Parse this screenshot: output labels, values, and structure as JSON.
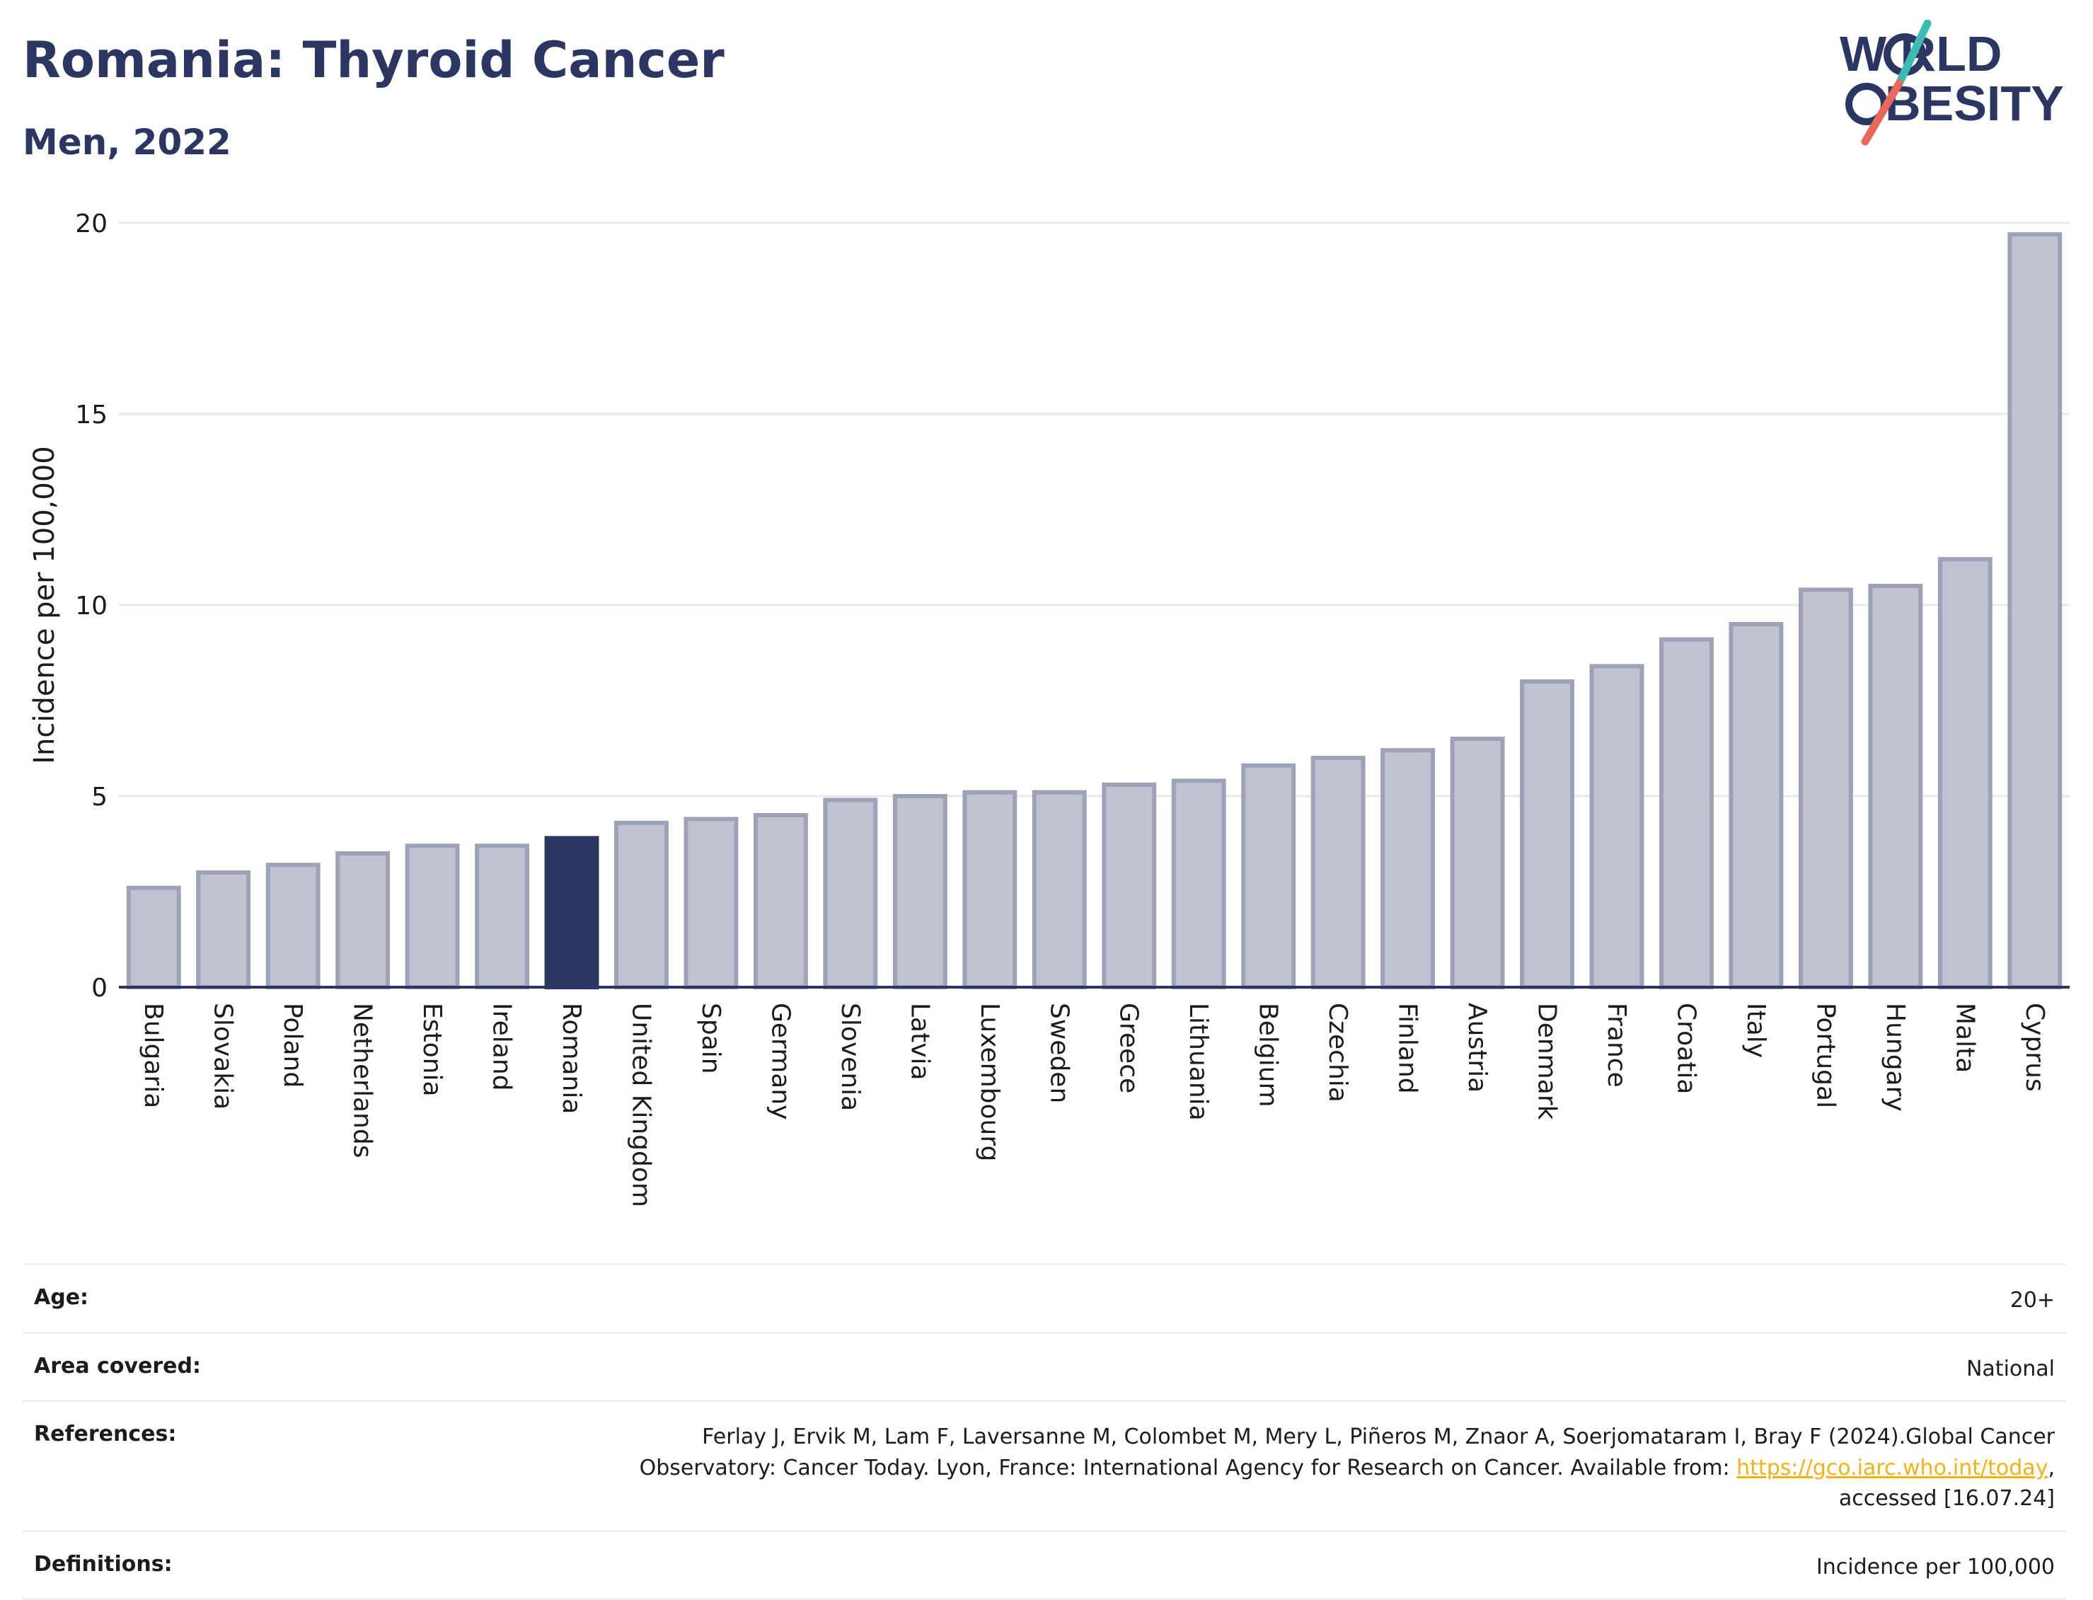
{
  "header": {
    "title": "Romania: Thyroid Cancer",
    "subtitle": "Men, 2022"
  },
  "logo": {
    "line1": "W RLD",
    "line2": "BESITY",
    "colors": {
      "text": "#2b3663",
      "slash_top": "#3dbcb6",
      "slash_bottom": "#e8685a"
    }
  },
  "colors": {
    "bar_fill": "#bfc2d0",
    "bar_stroke": "#9da2b7",
    "highlight": "#2b3663",
    "grid": "#e6e8ee",
    "axis": "#2b3663"
  },
  "chart_data": {
    "type": "bar",
    "ylabel": "Incidence per 100,000",
    "ylim": [
      0,
      20
    ],
    "yticks": [
      0,
      5,
      10,
      15,
      20
    ],
    "grid": true,
    "highlight": "Romania",
    "categories": [
      "Bulgaria",
      "Slovakia",
      "Poland",
      "Netherlands",
      "Estonia",
      "Ireland",
      "Romania",
      "United Kingdom",
      "Spain",
      "Germany",
      "Slovenia",
      "Latvia",
      "Luxembourg",
      "Sweden",
      "Greece",
      "Lithuania",
      "Belgium",
      "Czechia",
      "Finland",
      "Austria",
      "Denmark",
      "France",
      "Croatia",
      "Italy",
      "Portugal",
      "Hungary",
      "Malta",
      "Cyprus"
    ],
    "values": [
      2.6,
      3.0,
      3.2,
      3.5,
      3.7,
      3.7,
      3.9,
      4.3,
      4.4,
      4.5,
      4.9,
      5.0,
      5.1,
      5.1,
      5.3,
      5.4,
      5.8,
      6.0,
      6.2,
      6.5,
      8.0,
      8.4,
      9.1,
      9.5,
      10.4,
      10.5,
      11.2,
      19.7
    ]
  },
  "meta": {
    "age_label": "Age:",
    "age_value": "20+",
    "area_label": "Area covered:",
    "area_value": "National",
    "references_label": "References:",
    "references_text": "Ferlay J, Ervik M, Lam F, Laversanne M, Colombet M, Mery L, Piñeros M, Znaor A, Soerjomataram I, Bray F (2024).Global Cancer Observatory: Cancer Today. Lyon, France: International Agency for Research on Cancer. Available from: ",
    "references_link": "https://gco.iarc.who.int/today",
    "references_tail": ", accessed [16.07.24]",
    "definitions_label": "Definitions:",
    "definitions_value": "Incidence per 100,000"
  }
}
